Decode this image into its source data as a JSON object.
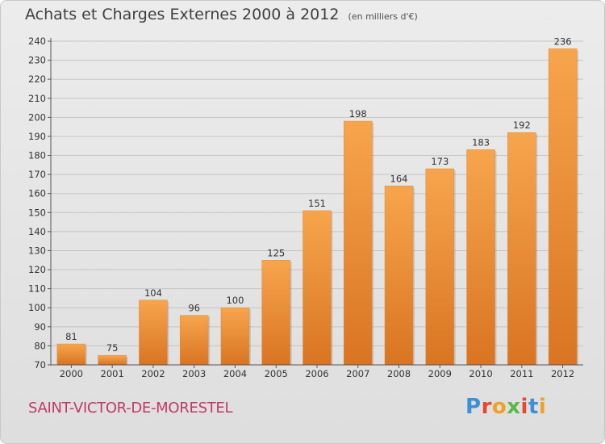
{
  "header": {
    "title": "Achats et Charges Externes 2000 à 2012",
    "subtitle": "(en milliers d'€)"
  },
  "footer": {
    "commune": "SAINT-VICTOR-DE-MORESTEL",
    "logo_text": "Proxiti"
  },
  "colors": {
    "bar_light": "#f7a54d",
    "bar_dark": "#d97422",
    "commune": "#c03a67",
    "logo": [
      "#3d8fd6",
      "#e8472f",
      "#f1a025",
      "#58b947",
      "#e8472f",
      "#3d8fd6",
      "#f1a025"
    ]
  },
  "chart_data": {
    "type": "bar",
    "title": "Achats et Charges Externes 2000 à 2012",
    "subtitle": "(en milliers d'€)",
    "categories": [
      "2000",
      "2001",
      "2002",
      "2003",
      "2004",
      "2005",
      "2006",
      "2007",
      "2008",
      "2009",
      "2010",
      "2011",
      "2012"
    ],
    "values": [
      81,
      75,
      104,
      96,
      100,
      125,
      151,
      198,
      164,
      173,
      183,
      192,
      236
    ],
    "ylim": [
      70,
      240
    ],
    "yticks": [
      70,
      80,
      90,
      100,
      110,
      120,
      130,
      140,
      150,
      160,
      170,
      180,
      190,
      200,
      210,
      220,
      230,
      240
    ],
    "grid": true,
    "data_labels": true,
    "xlabel": "",
    "ylabel": ""
  }
}
